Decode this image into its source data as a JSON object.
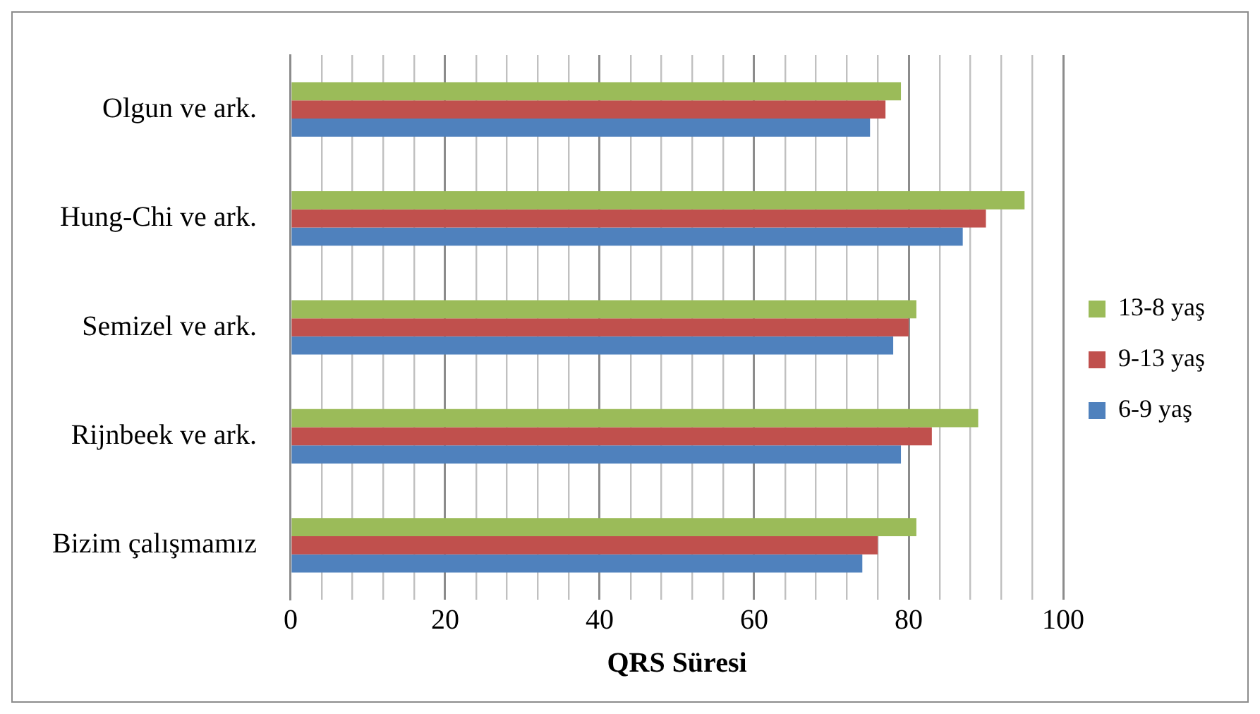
{
  "chart_data": {
    "type": "bar",
    "orientation": "horizontal",
    "xlabel": "QRS Süresi",
    "categories": [
      "Olgun ve ark.",
      "Hung-Chi ve ark.",
      "Semizel ve ark.",
      "Rijnbeek ve ark.",
      "Bizim çalışmamız"
    ],
    "series": [
      {
        "name": "13-8 yaş",
        "color": "#9bbb59",
        "values": [
          79,
          95,
          81,
          89,
          81
        ]
      },
      {
        "name": "9-13 yaş",
        "color": "#c0504d",
        "values": [
          77,
          90,
          80,
          83,
          76
        ]
      },
      {
        "name": "6-9 yaş",
        "color": "#4f81bd",
        "values": [
          75,
          87,
          78,
          79,
          74
        ]
      }
    ],
    "xlim": [
      0,
      100
    ],
    "xticks": [
      0,
      {
        "value": 4,
        "label": null
      },
      {
        "value": 8,
        "label": null
      },
      {
        "value": 12,
        "label": null
      },
      {
        "value": 16,
        "label": null
      },
      20,
      {
        "value": 24,
        "label": null
      },
      {
        "value": 28,
        "label": null
      },
      {
        "value": 32,
        "label": null
      },
      {
        "value": 36,
        "label": null
      },
      40,
      {
        "value": 44,
        "label": null
      },
      {
        "value": 48,
        "label": null
      },
      {
        "value": 52,
        "label": null
      },
      {
        "value": 56,
        "label": null
      },
      60,
      {
        "value": 64,
        "label": null
      },
      {
        "value": 68,
        "label": null
      },
      {
        "value": 72,
        "label": null
      },
      {
        "value": 76,
        "label": null
      },
      80,
      {
        "value": 84,
        "label": null
      },
      {
        "value": 88,
        "label": null
      },
      {
        "value": 92,
        "label": null
      },
      {
        "value": 96,
        "label": null
      },
      100
    ],
    "grid": "x",
    "legend": "right"
  }
}
